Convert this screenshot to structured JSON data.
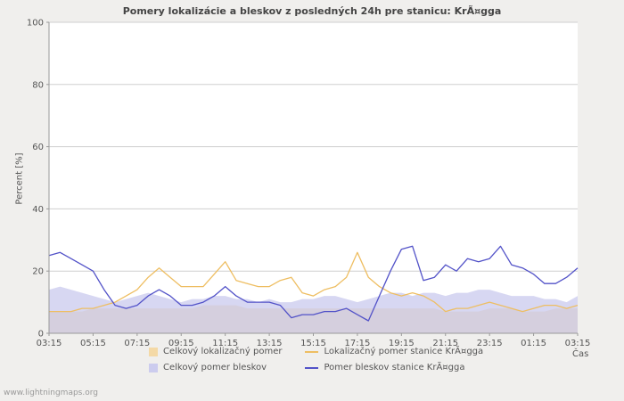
{
  "page": {
    "watermark": "www.lightningmaps.org"
  },
  "chart_data": {
    "type": "line",
    "title": "Pomery lokalizácie a bleskov z posledných 24h pre stanicu: KrÃ¤gga",
    "ylabel": "Percent  [%]",
    "xlabel": "Čas",
    "ylim": [
      0,
      100
    ],
    "yticks": [
      0,
      20,
      40,
      60,
      80,
      100
    ],
    "grid": true,
    "legend_position": "bottom",
    "x_ticklabels": [
      "03:15",
      "05:15",
      "07:15",
      "09:15",
      "11:15",
      "13:15",
      "15:15",
      "17:15",
      "19:15",
      "21:15",
      "23:15",
      "01:15",
      "03:15"
    ],
    "x": [
      "03:15",
      "03:45",
      "04:15",
      "04:45",
      "05:15",
      "05:45",
      "06:15",
      "06:45",
      "07:15",
      "07:45",
      "08:15",
      "08:45",
      "09:15",
      "09:45",
      "10:15",
      "10:45",
      "11:15",
      "11:45",
      "12:15",
      "12:45",
      "13:15",
      "13:45",
      "14:15",
      "14:45",
      "15:15",
      "15:45",
      "16:15",
      "16:45",
      "17:15",
      "17:45",
      "18:15",
      "18:45",
      "19:15",
      "19:45",
      "20:15",
      "20:45",
      "21:15",
      "21:45",
      "22:15",
      "22:45",
      "23:15",
      "23:45",
      "00:15",
      "00:45",
      "01:15",
      "01:45",
      "02:15",
      "02:45",
      "03:15"
    ],
    "series": [
      {
        "name": "Celkový lokalizačný pomer",
        "type": "area",
        "color": "#f4d9a6",
        "opacity": 1,
        "values": [
          7,
          7,
          7,
          7,
          8,
          8,
          8,
          8,
          8,
          8,
          8,
          8,
          8,
          8,
          9,
          9,
          9,
          9,
          8,
          8,
          8,
          8,
          8,
          8,
          8,
          8,
          8,
          8,
          8,
          8,
          8,
          8,
          8,
          8,
          8,
          8,
          7,
          7,
          7,
          7,
          8,
          8,
          8,
          7,
          7,
          7,
          8,
          8,
          8
        ]
      },
      {
        "name": "Celkový pomer bleskov",
        "type": "area",
        "color": "#ccccee",
        "opacity": 0.78,
        "values": [
          14,
          15,
          14,
          13,
          12,
          11,
          10,
          11,
          12,
          13,
          12,
          11,
          10,
          11,
          11,
          12,
          12,
          11,
          11,
          10,
          11,
          10,
          10,
          11,
          11,
          12,
          12,
          11,
          10,
          11,
          12,
          13,
          13,
          12,
          13,
          13,
          12,
          13,
          13,
          14,
          14,
          13,
          12,
          12,
          12,
          11,
          11,
          10,
          12
        ]
      },
      {
        "name": "Lokalizačný pomer stanice KrÃ¤gga",
        "type": "line",
        "color": "#eebe62",
        "values": [
          7,
          7,
          7,
          8,
          8,
          9,
          10,
          12,
          14,
          18,
          21,
          18,
          15,
          15,
          15,
          19,
          23,
          17,
          16,
          15,
          15,
          17,
          18,
          13,
          12,
          14,
          15,
          18,
          26,
          18,
          15,
          13,
          12,
          13,
          12,
          10,
          7,
          8,
          8,
          9,
          10,
          9,
          8,
          7,
          8,
          9,
          9,
          8,
          9
        ]
      },
      {
        "name": "Pomer bleskov stanice KrÃ¤gga",
        "type": "line",
        "color": "#5252c8",
        "values": [
          25,
          26,
          24,
          22,
          20,
          14,
          9,
          8,
          9,
          12,
          14,
          12,
          9,
          9,
          10,
          12,
          15,
          12,
          10,
          10,
          10,
          9,
          5,
          6,
          6,
          7,
          7,
          8,
          6,
          4,
          12,
          20,
          27,
          28,
          17,
          18,
          22,
          20,
          24,
          23,
          24,
          28,
          22,
          21,
          19,
          16,
          16,
          18,
          21
        ]
      }
    ]
  },
  "legend": {
    "items": [
      {
        "label": "Celkový lokalizačný pomer",
        "swatch": "area",
        "color": "#f4d9a6"
      },
      {
        "label": "Lokalizačný pomer stanice KrÃ¤gga",
        "swatch": "line",
        "color": "#eebe62"
      },
      {
        "label": "Celkový pomer bleskov",
        "swatch": "area",
        "color": "#ccccee"
      },
      {
        "label": "Pomer bleskov stanice KrÃ¤gga",
        "swatch": "line",
        "color": "#5252c8"
      }
    ]
  }
}
